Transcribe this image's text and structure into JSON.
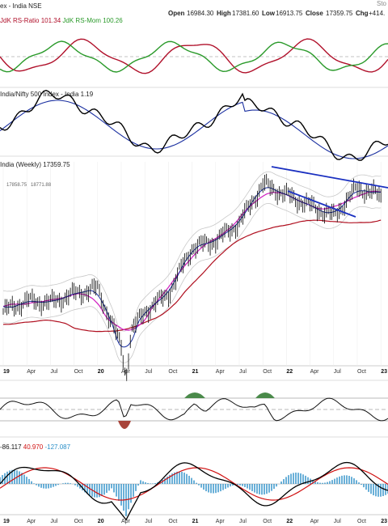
{
  "header": {
    "title": "ex - India NSE",
    "open_label": "Open",
    "open_value": "16984.30",
    "high_label": "High",
    "high_value": "17381.60",
    "low_label": "Low",
    "low_value": "16913.75",
    "close_label": "Close",
    "close_value": "17359.75",
    "chg_label": "Chg",
    "chg_value": "+414.",
    "logo_text": "Sto"
  },
  "panels": {
    "rrg": {
      "label_prefix": "JdK RS-Ratio",
      "ratio": "101.34",
      "label_mom": "JdK RS-Mom",
      "mom": "100.26"
    },
    "relative": {
      "label": "India/Nifty 500 Index - India 1.19"
    },
    "price": {
      "label": "India (Weekly) 17359.75",
      "ma_short": "17858.75",
      "ma_long": "18771.88"
    },
    "macd": {
      "v1": "-86.117",
      "v2": "40.970",
      "v3": "-127.087"
    }
  },
  "x_axis": {
    "ticks": [
      "19",
      "Apr",
      "Jul",
      "Oct",
      "20",
      "Apr",
      "Jul",
      "Oct",
      "21",
      "Apr",
      "Jul",
      "Oct",
      "22",
      "Apr",
      "Jul",
      "Oct",
      "23"
    ],
    "year_ticks": [
      "19",
      "20",
      "21",
      "22",
      "23"
    ]
  },
  "colors": {
    "price_bars": "#000000",
    "ma_blue": "#1a2fa0",
    "ma_magenta": "#d01ec0",
    "ma_red": "#b01020",
    "envelope": "#c8c8c8",
    "trendline": "#1a2fc0",
    "rrg_ratio": "#b0102a",
    "rrg_mom": "#2a9a2a",
    "macd_line": "#000000",
    "signal_line": "#d01010",
    "histogram": "#2a8fc8",
    "rsi_fill_pos": "#4a8a4a",
    "rsi_fill_neg": "#a8443a"
  },
  "chart_data": {
    "type": "line",
    "title": "India (Weekly) 17359.75",
    "x": [
      "2019-01",
      "2019-04",
      "2019-07",
      "2019-10",
      "2020-01",
      "2020-04",
      "2020-07",
      "2020-10",
      "2021-01",
      "2021-04",
      "2021-07",
      "2021-10",
      "2022-01",
      "2022-04",
      "2022-07",
      "2022-10",
      "2023-01"
    ],
    "series": [
      {
        "name": "Close",
        "values": [
          10800,
          11400,
          11300,
          11800,
          12100,
          8800,
          10800,
          11800,
          14400,
          14800,
          15800,
          18000,
          17400,
          16800,
          16200,
          17800,
          17360
        ]
      }
    ]
  }
}
